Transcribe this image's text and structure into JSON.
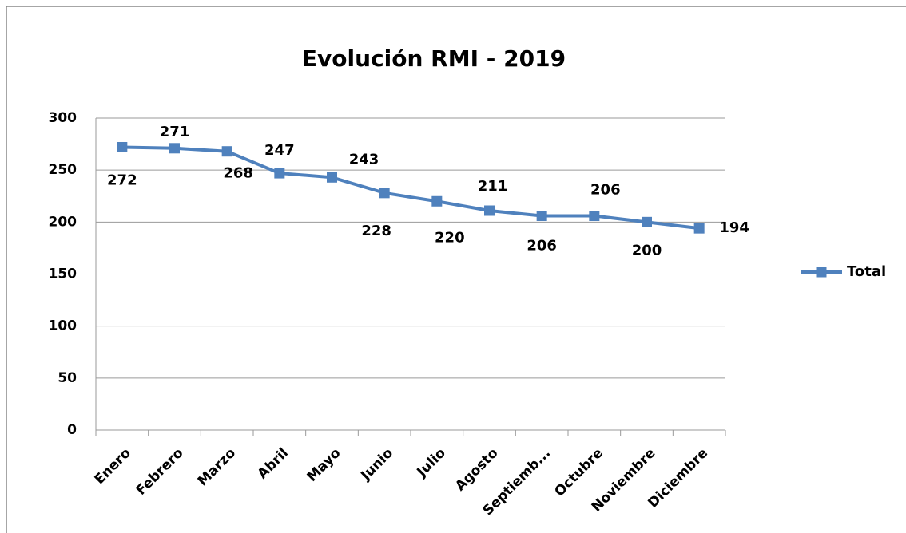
{
  "chart_data": {
    "type": "line",
    "title": "Evolución RMI - 2019",
    "categories": [
      "Enero",
      "Febrero",
      "Marzo",
      "Abril",
      "Mayo",
      "Junio",
      "Julio",
      "Agosto",
      "Septiemb...",
      "Octubre",
      "Noviembre",
      "Diciembre"
    ],
    "series": [
      {
        "name": "Total",
        "color": "#4f81bd",
        "values": [
          272,
          271,
          268,
          247,
          243,
          228,
          220,
          211,
          206,
          206,
          200,
          194
        ]
      }
    ],
    "ylim": [
      0,
      300
    ],
    "yticks": [
      0,
      50,
      100,
      150,
      200,
      250,
      300
    ],
    "grid": true,
    "legend": "right"
  }
}
